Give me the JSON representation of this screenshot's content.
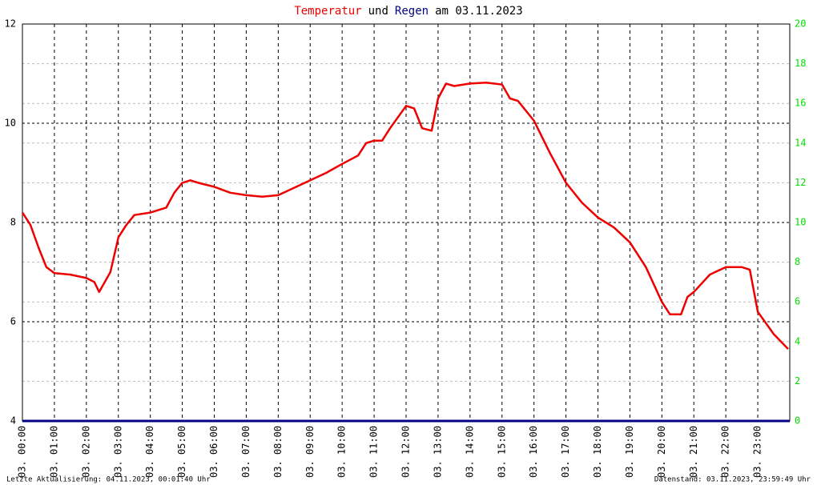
{
  "chart_data": {
    "type": "line",
    "title_parts": [
      {
        "text": "Temperatur",
        "color": "#ee0000"
      },
      {
        "text": "und",
        "color": "#000000"
      },
      {
        "text": "Regen",
        "color": "#000080"
      },
      {
        "text": "am 03.11.2023",
        "color": "#000000"
      }
    ],
    "xlim": [
      0,
      24
    ],
    "xticks": [
      {
        "value": 0,
        "label": "03. 00:00"
      },
      {
        "value": 1,
        "label": "03. 01:00"
      },
      {
        "value": 2,
        "label": "03. 02:00"
      },
      {
        "value": 3,
        "label": "03. 03:00"
      },
      {
        "value": 4,
        "label": "03. 04:00"
      },
      {
        "value": 5,
        "label": "03. 05:00"
      },
      {
        "value": 6,
        "label": "03. 06:00"
      },
      {
        "value": 7,
        "label": "03. 07:00"
      },
      {
        "value": 8,
        "label": "03. 08:00"
      },
      {
        "value": 9,
        "label": "03. 09:00"
      },
      {
        "value": 10,
        "label": "03. 10:00"
      },
      {
        "value": 11,
        "label": "03. 11:00"
      },
      {
        "value": 12,
        "label": "03. 12:00"
      },
      {
        "value": 13,
        "label": "03. 13:00"
      },
      {
        "value": 14,
        "label": "03. 14:00"
      },
      {
        "value": 15,
        "label": "03. 15:00"
      },
      {
        "value": 16,
        "label": "03. 16:00"
      },
      {
        "value": 17,
        "label": "03. 17:00"
      },
      {
        "value": 18,
        "label": "03. 18:00"
      },
      {
        "value": 19,
        "label": "03. 19:00"
      },
      {
        "value": 20,
        "label": "03. 20:00"
      },
      {
        "value": 21,
        "label": "03. 21:00"
      },
      {
        "value": 22,
        "label": "03. 22:00"
      },
      {
        "value": 23,
        "label": "03. 23:00"
      }
    ],
    "ylim": [
      4,
      12
    ],
    "yticks": [
      4,
      6,
      8,
      10,
      12
    ],
    "y2lim": [
      0,
      20
    ],
    "y2ticks": [
      0,
      2,
      4,
      6,
      8,
      10,
      12,
      14,
      16,
      18,
      20
    ],
    "y2_color": "#00dd00",
    "grid": true,
    "series": [
      {
        "name": "Temperatur",
        "color": "#ee0000",
        "x": [
          0,
          0.25,
          0.5,
          0.75,
          1,
          1.5,
          2,
          2.25,
          2.4,
          2.75,
          3,
          3.25,
          3.5,
          4,
          4.5,
          4.75,
          5,
          5.25,
          5.5,
          6,
          6.5,
          7,
          7.5,
          8,
          8.5,
          9,
          9.5,
          10,
          10.5,
          10.75,
          11,
          11.25,
          11.5,
          12,
          12.25,
          12.5,
          12.8,
          13,
          13.25,
          13.5,
          14,
          14.5,
          15,
          15.25,
          15.5,
          16,
          16.5,
          17,
          17.5,
          18,
          18.5,
          19,
          19.5,
          20,
          20.25,
          20.6,
          20.8,
          21,
          21.5,
          22,
          22.5,
          22.75,
          23,
          23.5,
          23.95
        ],
        "values": [
          8.2,
          7.95,
          7.5,
          7.1,
          6.98,
          6.95,
          6.88,
          6.8,
          6.6,
          7.0,
          7.7,
          7.95,
          8.15,
          8.2,
          8.3,
          8.6,
          8.8,
          8.85,
          8.8,
          8.72,
          8.6,
          8.55,
          8.52,
          8.55,
          8.7,
          8.85,
          9.0,
          9.18,
          9.35,
          9.6,
          9.65,
          9.65,
          9.9,
          10.35,
          10.3,
          9.9,
          9.85,
          10.5,
          10.8,
          10.75,
          10.8,
          10.82,
          10.78,
          10.5,
          10.45,
          10.05,
          9.4,
          8.8,
          8.4,
          8.1,
          7.9,
          7.6,
          7.1,
          6.4,
          6.15,
          6.15,
          6.5,
          6.6,
          6.95,
          7.1,
          7.1,
          7.05,
          6.2,
          5.75,
          5.45
        ]
      },
      {
        "name": "Regen",
        "color": "#000080",
        "axis": "y2",
        "x": [
          0,
          24
        ],
        "values": [
          0,
          0
        ]
      }
    ],
    "footer_left": "Letzte Aktualisierung: 04.11.2023, 00:01:40 Uhr",
    "footer_right": "Datenstand: 03.11.2023, 23:59:49 Uhr"
  }
}
